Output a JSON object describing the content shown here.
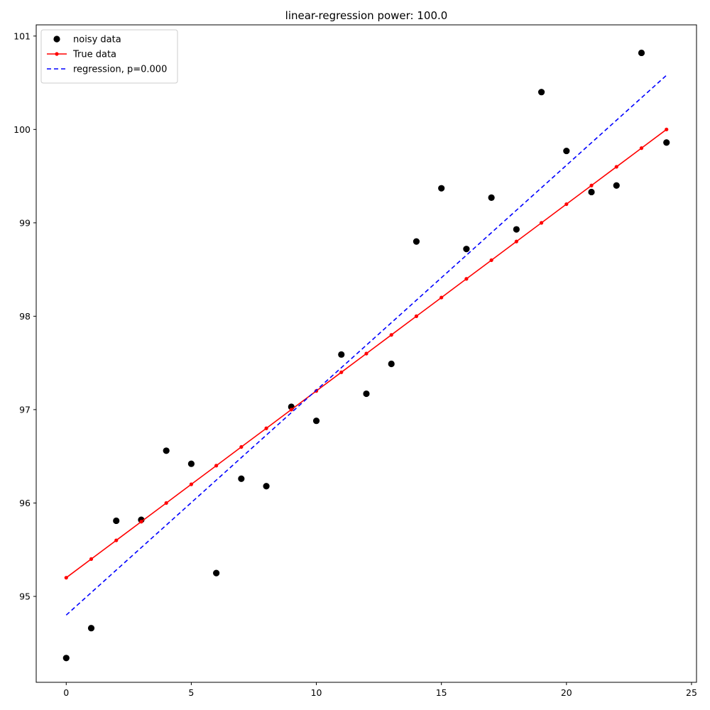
{
  "chart_data": {
    "type": "scatter",
    "title": "linear-regression power: 100.0",
    "xlabel": "",
    "ylabel": "",
    "xlim": [
      -1.2,
      25.2
    ],
    "ylim": [
      94.08,
      101.12
    ],
    "xticks": [
      0,
      5,
      10,
      15,
      20,
      25
    ],
    "yticks": [
      95,
      96,
      97,
      98,
      99,
      100,
      101
    ],
    "legend_position": "top-left",
    "grid": false,
    "series": [
      {
        "name": "noisy data",
        "kind": "scatter",
        "color": "#000000",
        "x": [
          0,
          1,
          2,
          3,
          4,
          5,
          6,
          7,
          8,
          9,
          10,
          11,
          12,
          13,
          14,
          15,
          16,
          17,
          18,
          19,
          20,
          21,
          22,
          23,
          24
        ],
        "y": [
          94.34,
          94.66,
          95.81,
          95.82,
          96.56,
          96.42,
          95.25,
          96.26,
          96.18,
          97.03,
          96.88,
          97.59,
          97.17,
          97.49,
          98.8,
          99.37,
          98.72,
          99.27,
          98.93,
          100.4,
          99.77,
          99.33,
          99.4,
          100.82,
          99.86
        ]
      },
      {
        "name": "True data",
        "kind": "line-marker",
        "color": "#ff0000",
        "x": [
          0,
          1,
          2,
          3,
          4,
          5,
          6,
          7,
          8,
          9,
          10,
          11,
          12,
          13,
          14,
          15,
          16,
          17,
          18,
          19,
          20,
          21,
          22,
          23,
          24
        ],
        "y": [
          95.2,
          95.4,
          95.6,
          95.8,
          96.0,
          96.2,
          96.4,
          96.6,
          96.8,
          97.0,
          97.2,
          97.4,
          97.6,
          97.8,
          98.0,
          98.2,
          98.4,
          98.6,
          98.8,
          99.0,
          99.2,
          99.4,
          99.6,
          99.8,
          100.0
        ]
      },
      {
        "name": "regression, p=0.000",
        "kind": "dashed-line",
        "color": "#0000ff",
        "x": [
          0,
          24
        ],
        "y": [
          94.8,
          100.58
        ]
      }
    ]
  }
}
